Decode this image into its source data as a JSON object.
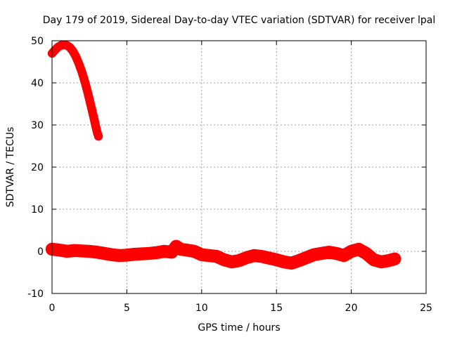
{
  "chart_data": {
    "type": "scatter",
    "title": "Day 179 of 2019, Sidereal Day-to-day VTEC variation (SDTVAR) for receiver lpal",
    "xlabel": "GPS time / hours",
    "ylabel": "SDTVAR / TECUs",
    "xlim": [
      0,
      25
    ],
    "ylim": [
      -10,
      50
    ],
    "xticks": [
      0,
      5,
      10,
      15,
      20,
      25
    ],
    "yticks": [
      -10,
      0,
      10,
      20,
      30,
      40,
      50
    ],
    "grid": true,
    "series_color": "#ff0000",
    "series": [
      {
        "name": "satellite arc (high)",
        "band": 0.7,
        "x": [
          0.0,
          0.2,
          0.4,
          0.6,
          0.8,
          1.0,
          1.2,
          1.4,
          1.6,
          1.8,
          2.0,
          2.2,
          2.4,
          2.6,
          2.8,
          3.0,
          3.1
        ],
        "y": [
          47.0,
          47.8,
          48.5,
          48.9,
          49.0,
          48.9,
          48.4,
          47.5,
          46.2,
          44.5,
          42.5,
          40.2,
          37.5,
          34.6,
          31.6,
          28.5,
          27.3
        ]
      },
      {
        "name": "near-zero variation",
        "band": 1.2,
        "x": [
          0.0,
          0.5,
          1.0,
          1.5,
          2.0,
          2.5,
          3.0,
          3.5,
          4.0,
          4.5,
          5.0,
          5.5,
          6.0,
          6.5,
          7.0,
          7.5,
          8.0,
          8.3,
          8.6,
          9.0,
          9.5,
          10.0,
          10.5,
          11.0,
          11.5,
          12.0,
          12.5,
          13.0,
          13.5,
          14.0,
          14.5,
          15.0,
          15.5,
          16.0,
          16.5,
          17.0,
          17.5,
          18.0,
          18.5,
          19.0,
          19.5,
          20.0,
          20.5,
          21.0,
          21.5,
          22.0,
          22.5,
          22.9
        ],
        "y": [
          0.5,
          0.3,
          0.0,
          0.2,
          0.1,
          0.0,
          -0.2,
          -0.5,
          -0.8,
          -1.0,
          -0.9,
          -0.7,
          -0.6,
          -0.5,
          -0.3,
          0.0,
          -0.2,
          1.2,
          0.5,
          0.3,
          0.0,
          -0.8,
          -1.0,
          -1.2,
          -2.0,
          -2.5,
          -2.2,
          -1.5,
          -1.0,
          -1.2,
          -1.6,
          -2.0,
          -2.5,
          -2.8,
          -2.2,
          -1.5,
          -0.8,
          -0.5,
          -0.2,
          -0.5,
          -1.0,
          0.0,
          0.5,
          -0.5,
          -2.0,
          -2.5,
          -2.2,
          -1.8
        ]
      }
    ]
  }
}
